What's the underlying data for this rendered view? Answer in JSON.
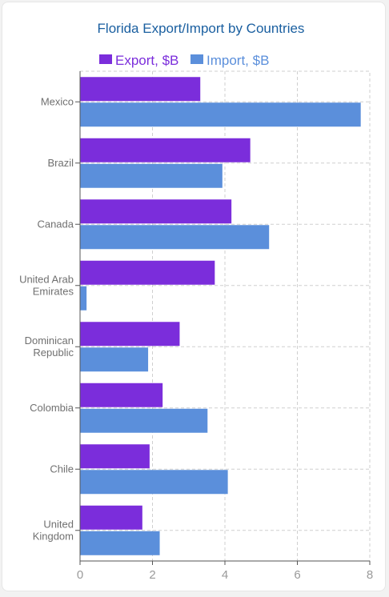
{
  "chart_data": {
    "type": "bar",
    "orientation": "horizontal",
    "title": "Florida Export/Import by Countries",
    "categories": [
      [
        "Mexico"
      ],
      [
        "Brazil"
      ],
      [
        "Canada"
      ],
      [
        "United Arab",
        "Emirates"
      ],
      [
        "Dominican",
        "Republic"
      ],
      [
        "Colombia"
      ],
      [
        "Chile"
      ],
      [
        "United",
        "Kingdom"
      ]
    ],
    "series": [
      {
        "name": "Export, $B",
        "color": "#7b2ddb",
        "values": [
          3.32,
          4.7,
          4.18,
          3.72,
          2.75,
          2.28,
          1.92,
          1.72
        ]
      },
      {
        "name": "Import, $B",
        "color": "#5b8fdb",
        "values": [
          7.75,
          3.93,
          5.22,
          0.18,
          1.88,
          3.52,
          4.08,
          2.2
        ]
      }
    ],
    "xlim": [
      0,
      8
    ],
    "xticks": [
      0,
      2,
      4,
      6,
      8
    ],
    "grid": true,
    "legend": "top"
  },
  "colors": {
    "title": "#1a5fa0",
    "grid": "#cfcfcf",
    "axis": "#555555"
  }
}
